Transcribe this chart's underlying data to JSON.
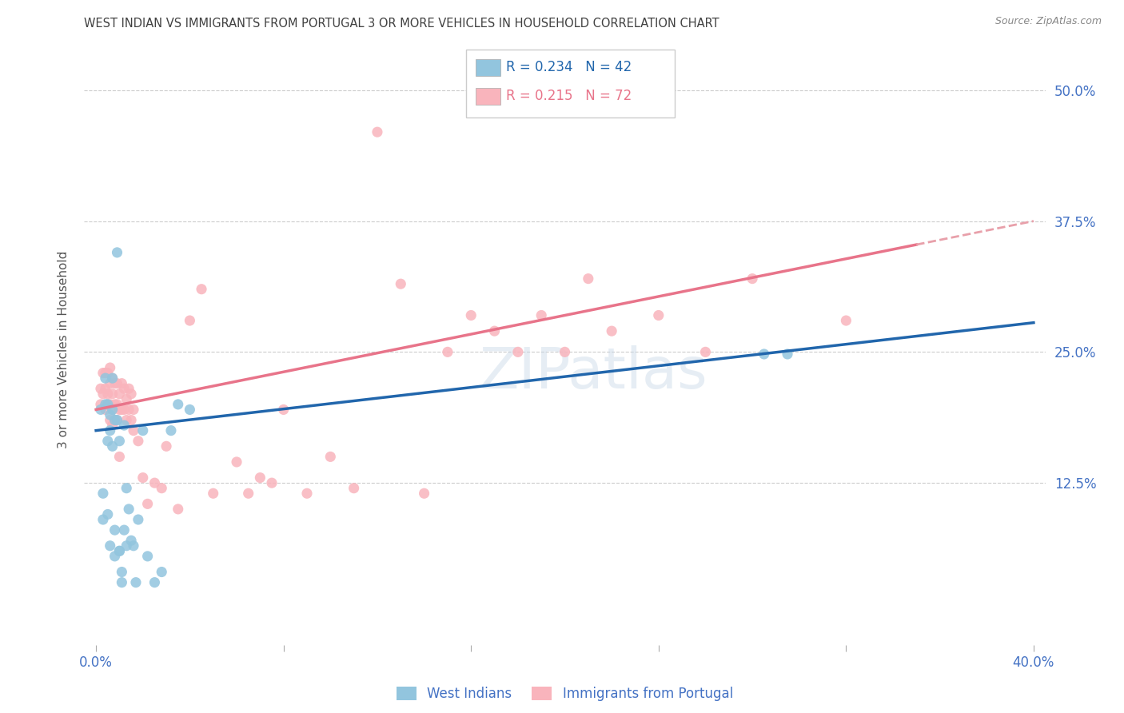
{
  "title": "WEST INDIAN VS IMMIGRANTS FROM PORTUGAL 3 OR MORE VEHICLES IN HOUSEHOLD CORRELATION CHART",
  "source": "Source: ZipAtlas.com",
  "xlabel_west": "West Indians",
  "xlabel_portugal": "Immigrants from Portugal",
  "ylabel": "3 or more Vehicles in Household",
  "xlim": [
    0.0,
    0.4
  ],
  "ylim": [
    0.0,
    0.5
  ],
  "xticks": [
    0.0,
    0.08,
    0.16,
    0.24,
    0.32,
    0.4
  ],
  "xtick_labels": [
    "0.0%",
    "",
    "",
    "",
    "",
    "40.0%"
  ],
  "ytick_labels_right": [
    "50.0%",
    "37.5%",
    "25.0%",
    "12.5%"
  ],
  "ytick_vals_right": [
    0.5,
    0.375,
    0.25,
    0.125
  ],
  "legend_R1": "0.234",
  "legend_N1": "42",
  "legend_R2": "0.215",
  "legend_N2": "72",
  "color_west": "#92C5DE",
  "color_portugal": "#F9B4BC",
  "color_west_line": "#2166AC",
  "color_portugal_line": "#E8748A",
  "color_portugal_dashed": "#E8A0AA",
  "color_axis_labels": "#4472C4",
  "color_title": "#404040",
  "color_grid": "#CCCCCC",
  "watermark_text": "ZIPatlas",
  "west_line_x0": 0.0,
  "west_line_y0": 0.175,
  "west_line_x1": 0.4,
  "west_line_y1": 0.278,
  "portugal_line_x0": 0.0,
  "portugal_line_y0": 0.195,
  "portugal_line_solid_x1": 0.35,
  "portugal_line_x1": 0.4,
  "portugal_line_y1": 0.375,
  "west_x": [
    0.002,
    0.003,
    0.003,
    0.004,
    0.004,
    0.005,
    0.005,
    0.005,
    0.006,
    0.006,
    0.006,
    0.007,
    0.007,
    0.007,
    0.008,
    0.008,
    0.008,
    0.009,
    0.009,
    0.01,
    0.01,
    0.01,
    0.011,
    0.011,
    0.012,
    0.012,
    0.013,
    0.013,
    0.014,
    0.015,
    0.016,
    0.017,
    0.018,
    0.02,
    0.022,
    0.025,
    0.028,
    0.032,
    0.035,
    0.04,
    0.285,
    0.295
  ],
  "west_y": [
    0.195,
    0.115,
    0.09,
    0.225,
    0.2,
    0.2,
    0.165,
    0.095,
    0.19,
    0.175,
    0.065,
    0.225,
    0.195,
    0.16,
    0.185,
    0.08,
    0.055,
    0.345,
    0.185,
    0.165,
    0.06,
    0.06,
    0.03,
    0.04,
    0.18,
    0.08,
    0.12,
    0.065,
    0.1,
    0.07,
    0.065,
    0.03,
    0.09,
    0.175,
    0.055,
    0.03,
    0.04,
    0.175,
    0.2,
    0.195,
    0.248,
    0.248
  ],
  "portugal_x": [
    0.002,
    0.002,
    0.003,
    0.003,
    0.004,
    0.004,
    0.004,
    0.005,
    0.005,
    0.005,
    0.006,
    0.006,
    0.006,
    0.006,
    0.007,
    0.007,
    0.007,
    0.007,
    0.008,
    0.008,
    0.008,
    0.009,
    0.009,
    0.009,
    0.01,
    0.01,
    0.01,
    0.011,
    0.011,
    0.012,
    0.012,
    0.013,
    0.013,
    0.014,
    0.014,
    0.015,
    0.015,
    0.016,
    0.016,
    0.018,
    0.02,
    0.022,
    0.025,
    0.028,
    0.03,
    0.035,
    0.04,
    0.045,
    0.05,
    0.06,
    0.065,
    0.07,
    0.075,
    0.08,
    0.09,
    0.1,
    0.11,
    0.12,
    0.13,
    0.14,
    0.15,
    0.16,
    0.17,
    0.18,
    0.19,
    0.2,
    0.21,
    0.22,
    0.24,
    0.26,
    0.28,
    0.32
  ],
  "portugal_y": [
    0.215,
    0.2,
    0.23,
    0.21,
    0.23,
    0.215,
    0.195,
    0.23,
    0.21,
    0.2,
    0.235,
    0.22,
    0.2,
    0.185,
    0.225,
    0.21,
    0.195,
    0.18,
    0.22,
    0.2,
    0.185,
    0.22,
    0.2,
    0.185,
    0.21,
    0.195,
    0.15,
    0.22,
    0.195,
    0.215,
    0.195,
    0.205,
    0.185,
    0.215,
    0.195,
    0.21,
    0.185,
    0.195,
    0.175,
    0.165,
    0.13,
    0.105,
    0.125,
    0.12,
    0.16,
    0.1,
    0.28,
    0.31,
    0.115,
    0.145,
    0.115,
    0.13,
    0.125,
    0.195,
    0.115,
    0.15,
    0.12,
    0.46,
    0.315,
    0.115,
    0.25,
    0.285,
    0.27,
    0.25,
    0.285,
    0.25,
    0.32,
    0.27,
    0.285,
    0.25,
    0.32,
    0.28
  ]
}
